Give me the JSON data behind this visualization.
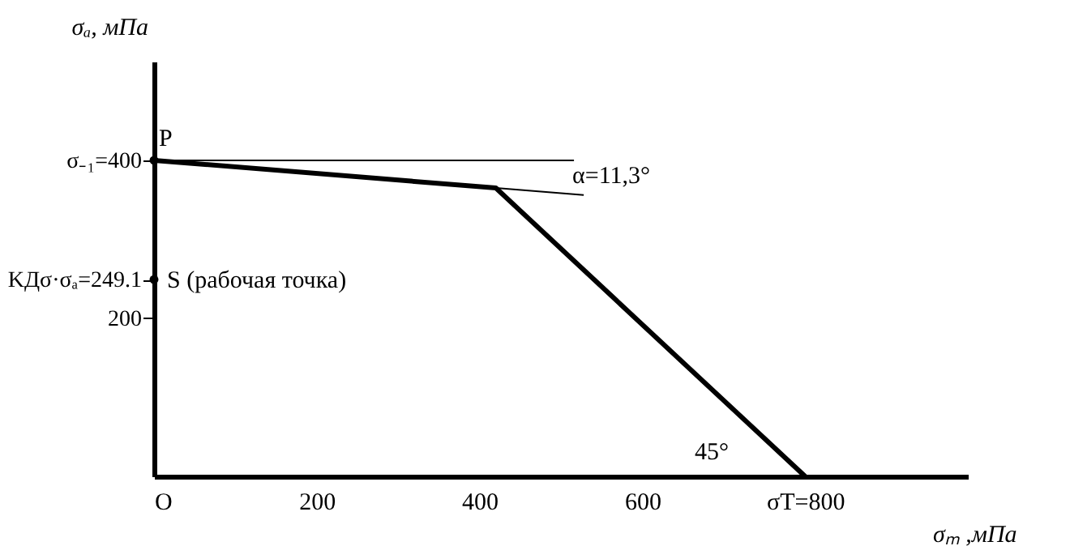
{
  "chart_data": {
    "type": "line",
    "xlabel": "σₘ ,мПа",
    "ylabel": "σₐ, мПа",
    "xlim": [
      0,
      1000
    ],
    "ylim": [
      0,
      525
    ],
    "xticks": [
      {
        "value": 0,
        "label": "O"
      },
      200,
      400,
      600,
      {
        "value": 800,
        "label": "σT=800"
      }
    ],
    "yticks": [
      200,
      {
        "value": 249.1,
        "label": "KДσ·σₐ=249.1"
      },
      {
        "value": 400,
        "label": "σ₋₁=400"
      }
    ],
    "series": [
      {
        "color": "#000000",
        "x": [
          0,
          420,
          800
        ],
        "values": [
          400,
          365,
          0
        ]
      },
      {
        "color": "#000000",
        "x": [
          0,
          516
        ],
        "values": [
          400,
          400
        ]
      },
      {
        "color": "#000000",
        "x": [
          420,
          528
        ],
        "values": [
          365,
          356
        ]
      },
      {
        "type": "scatter",
        "color": "#000000",
        "marker": "circle",
        "x": [
          0,
          0
        ],
        "values": [
          400,
          249.1
        ]
      }
    ],
    "annotations": [
      {
        "text": "P",
        "x": 0,
        "y": 400
      },
      {
        "text": "S (рабочая точка)",
        "x": 0,
        "y": 249.1
      },
      {
        "text": "α=11,3°",
        "x": 516,
        "y": 400
      },
      {
        "text": "45°",
        "x": 760,
        "y": 38
      }
    ],
    "grid": false
  }
}
